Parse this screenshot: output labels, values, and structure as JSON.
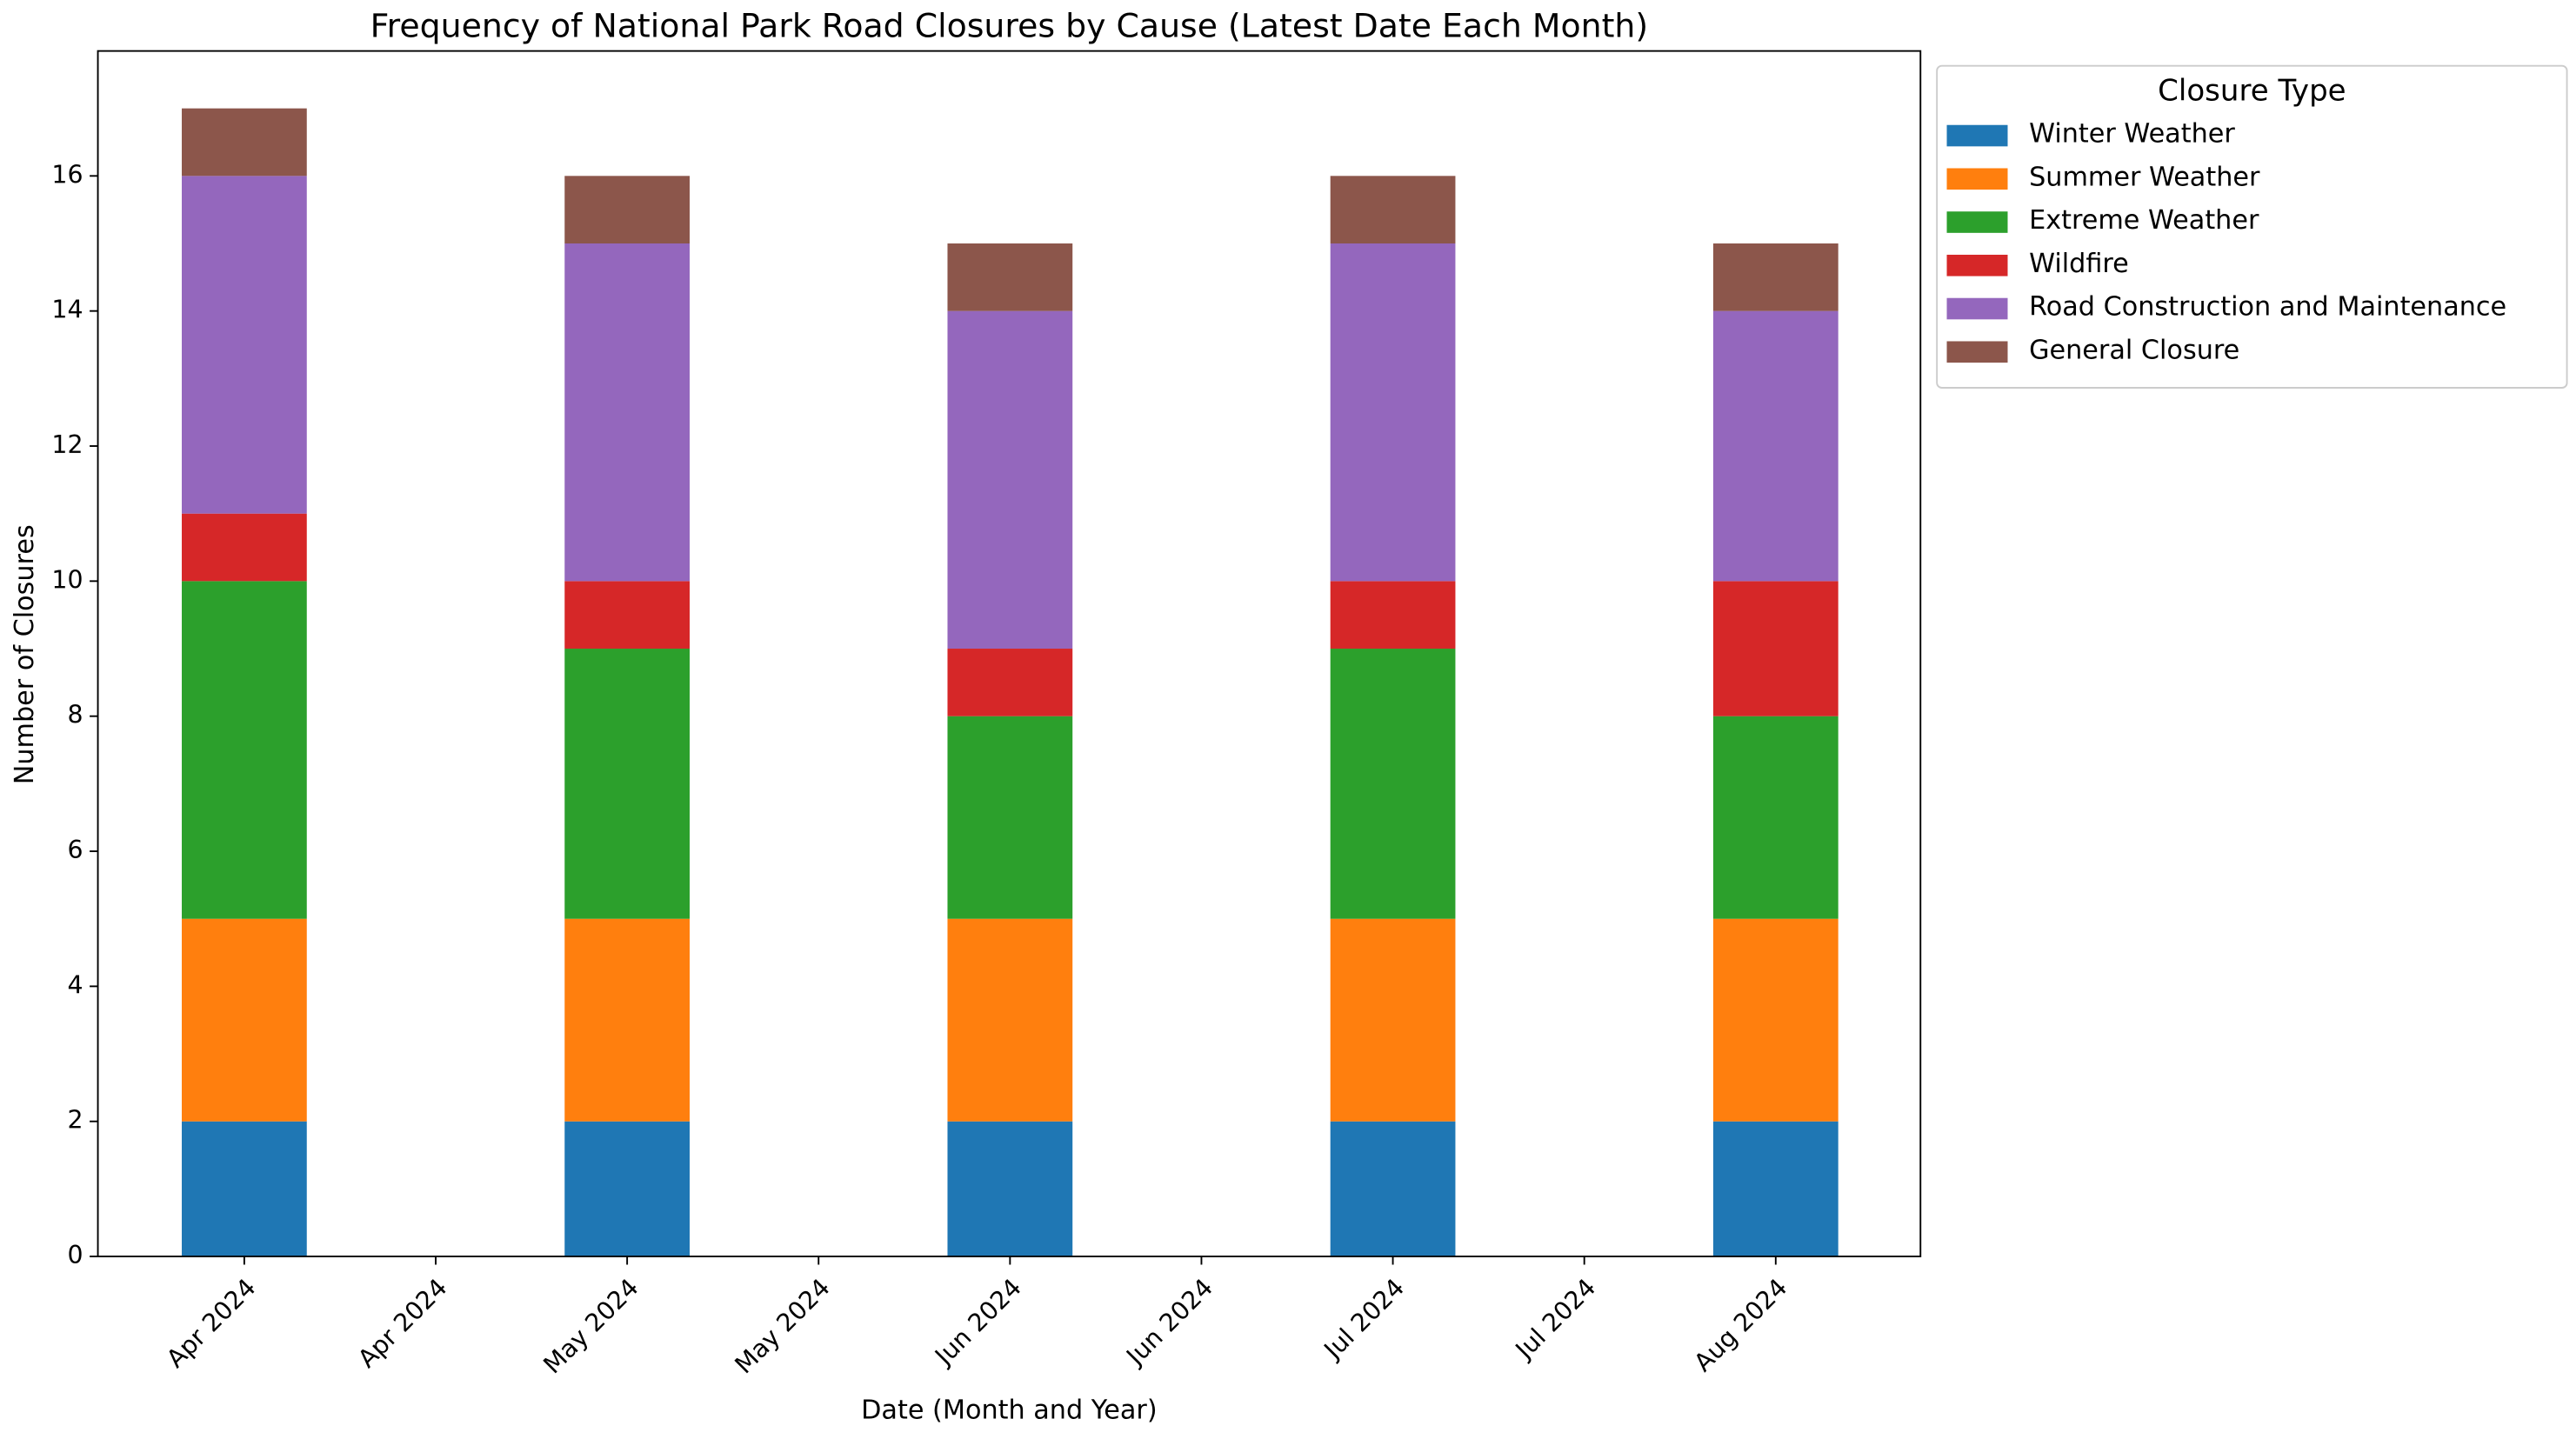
{
  "chart_data": {
    "type": "stacked_bar",
    "title": "Frequency of National Park Road Closures by Cause (Latest Date Each Month)",
    "x_label": "Date (Month and Year)",
    "y_label": "Number of Closures",
    "legend_title": "Closure Type",
    "legend_position": "outside upper right",
    "categories": [
      "Apr 2024",
      "Apr 2024",
      "May 2024",
      "May 2024",
      "Jun 2024",
      "Jun 2024",
      "Jul 2024",
      "Jul 2024",
      "Aug 2024"
    ],
    "series": [
      {
        "name": "Winter Weather",
        "color": "#1f77b4",
        "values": [
          2,
          null,
          2,
          null,
          2,
          null,
          2,
          null,
          2
        ]
      },
      {
        "name": "Summer Weather",
        "color": "#ff7f0e",
        "values": [
          3,
          null,
          3,
          null,
          3,
          null,
          3,
          null,
          3
        ]
      },
      {
        "name": "Extreme Weather",
        "color": "#2ca02c",
        "values": [
          5,
          null,
          4,
          null,
          3,
          null,
          4,
          null,
          3
        ]
      },
      {
        "name": "Wildfire",
        "color": "#d62728",
        "values": [
          1,
          null,
          1,
          null,
          1,
          null,
          1,
          null,
          2
        ]
      },
      {
        "name": "Road Construction and Maintenance",
        "color": "#9467bd",
        "values": [
          5,
          null,
          5,
          null,
          5,
          null,
          5,
          null,
          4
        ]
      },
      {
        "name": "General Closure",
        "color": "#8c564b",
        "values": [
          1,
          null,
          1,
          null,
          1,
          null,
          1,
          null,
          1
        ]
      }
    ],
    "ylim": [
      0,
      17.85
    ],
    "yticks": [
      0,
      2,
      4,
      6,
      8,
      10,
      12,
      14,
      16
    ],
    "grid": false
  }
}
